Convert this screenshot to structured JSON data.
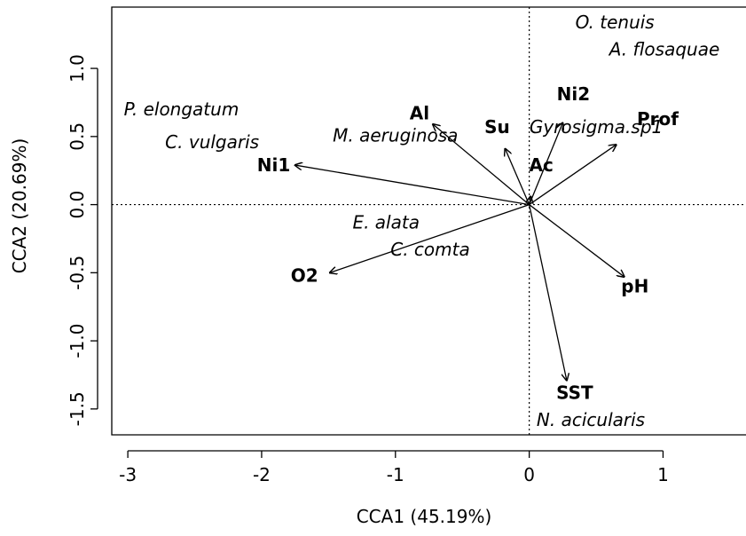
{
  "chart_data": {
    "type": "scatter",
    "xlabel": "CCA1 (45.19%)",
    "ylabel": "CCA2 (20.69%)",
    "xlim": [
      -3.12,
      1.62
    ],
    "ylim": [
      -1.69,
      1.45
    ],
    "xticks": [
      -3,
      -2,
      -1,
      0,
      1
    ],
    "yticks": [
      -1.5,
      -1.0,
      -0.5,
      0.0,
      0.5,
      1.0
    ],
    "xtick_labels": [
      "-3",
      "-2",
      "-1",
      "0",
      "1"
    ],
    "ytick_labels": [
      "-1.5",
      "-1.0",
      "-0.5",
      "0.0",
      "0.5",
      "1.0"
    ],
    "reference_lines": {
      "x": 0,
      "y": 0,
      "style": "dotted"
    },
    "grid": false,
    "species": [
      {
        "label": "O. tenuis",
        "x": 0.64,
        "y": 1.34
      },
      {
        "label": "A. flosaquae",
        "x": 1.01,
        "y": 1.14
      },
      {
        "label": "P. elongatum",
        "x": -2.6,
        "y": 0.7
      },
      {
        "label": "C. vulgaris",
        "x": -2.37,
        "y": 0.46
      },
      {
        "label": "M. aeruginosa",
        "x": -1.0,
        "y": 0.51
      },
      {
        "label": "Gyrosigma.sp1",
        "x": 0.5,
        "y": 0.57
      },
      {
        "label": "E. alata",
        "x": -1.07,
        "y": -0.13
      },
      {
        "label": "C. comta",
        "x": -0.74,
        "y": -0.33
      },
      {
        "label": "N. acicularis",
        "x": 0.46,
        "y": -1.58
      }
    ],
    "vectors": [
      {
        "label": "Al",
        "x": -0.72,
        "y": 0.59,
        "label_x": -0.82,
        "label_y": 0.67
      },
      {
        "label": "Su",
        "x": -0.18,
        "y": 0.41,
        "label_x": -0.24,
        "label_y": 0.57
      },
      {
        "label": "Ac",
        "x": 0.01,
        "y": 0.06,
        "label_x": 0.09,
        "label_y": 0.29
      },
      {
        "label": "Ni2",
        "x": 0.25,
        "y": 0.6,
        "label_x": 0.33,
        "label_y": 0.81
      },
      {
        "label": "Prof",
        "x": 0.65,
        "y": 0.44,
        "label_x": 0.96,
        "label_y": 0.63
      },
      {
        "label": "Ni1",
        "x": -1.75,
        "y": 0.29,
        "label_x": -1.91,
        "label_y": 0.29
      },
      {
        "label": "O2",
        "x": -1.49,
        "y": -0.5,
        "label_x": -1.68,
        "label_y": -0.52
      },
      {
        "label": "pH",
        "x": 0.71,
        "y": -0.53,
        "label_x": 0.79,
        "label_y": -0.6
      },
      {
        "label": "SST",
        "x": 0.28,
        "y": -1.29,
        "label_x": 0.34,
        "label_y": -1.38
      }
    ]
  }
}
